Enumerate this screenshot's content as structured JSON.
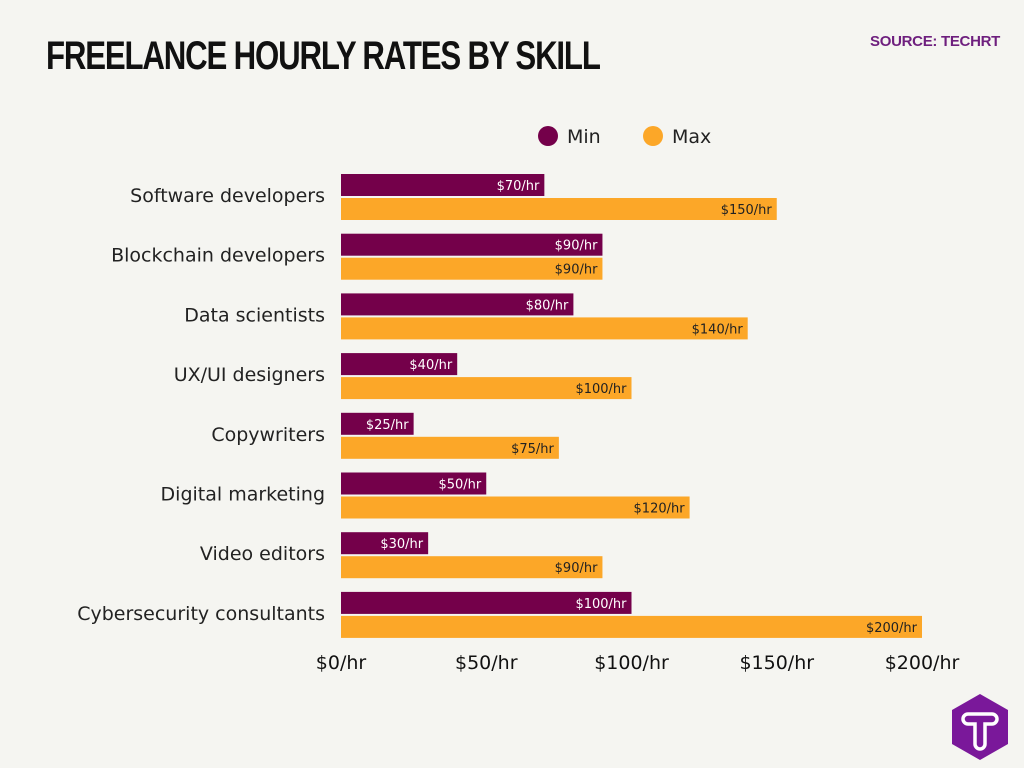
{
  "title": "FREELANCE HOURLY RATES BY SKILL",
  "source": "SOURCE: TECHRT",
  "logo": "T",
  "chart_data": {
    "type": "bar",
    "orientation": "horizontal",
    "categories": [
      "Software developers",
      "Blockchain developers",
      "Data scientists",
      "UX/UI designers",
      "Copywriters",
      "Digital marketing",
      "Video editors",
      "Cybersecurity consultants"
    ],
    "series": [
      {
        "name": "Min",
        "color": "#74004a",
        "values": [
          70,
          90,
          80,
          40,
          25,
          50,
          30,
          100
        ],
        "labels": [
          "$70/hr",
          "$90/hr",
          "$80/hr",
          "$40/hr",
          "$25/hr",
          "$50/hr",
          "$30/hr",
          "$100/hr"
        ]
      },
      {
        "name": "Max",
        "color": "#fca728",
        "values": [
          150,
          90,
          140,
          100,
          75,
          120,
          90,
          200
        ],
        "labels": [
          "$150/hr",
          "$90/hr",
          "$140/hr",
          "$100/hr",
          "$75/hr",
          "$120/hr",
          "$90/hr",
          "$200/hr"
        ]
      }
    ],
    "xlim": [
      0,
      200
    ],
    "xticks": [
      0,
      50,
      100,
      150,
      200
    ],
    "xtick_labels": [
      "$0/hr",
      "$50/hr",
      "$100/hr",
      "$150/hr",
      "$200/hr"
    ],
    "grid": false,
    "legend": "top"
  }
}
